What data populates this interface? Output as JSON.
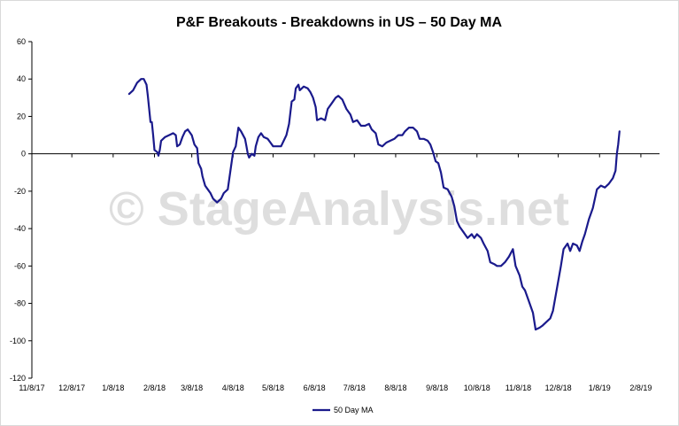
{
  "watermark": "© StageAnalysis.net",
  "chart_data": {
    "type": "line",
    "title": "P&F Breakouts - Breakdowns in US – 50 Day MA",
    "xlabel": "",
    "ylabel": "",
    "ylim": [
      -120,
      60
    ],
    "y_ticks": [
      "60",
      "40",
      "20",
      "0",
      "-20",
      "-40",
      "-60",
      "-80",
      "-100",
      "-120"
    ],
    "x_tick_labels": [
      "11/8/17",
      "12/8/17",
      "1/8/18",
      "2/8/18",
      "3/8/18",
      "4/8/18",
      "5/8/18",
      "6/8/18",
      "7/8/18",
      "8/8/18",
      "9/8/18",
      "10/8/18",
      "11/8/18",
      "12/8/18",
      "1/8/19",
      "2/8/19"
    ],
    "x_ticks": [
      "2017-11-08",
      "2017-12-08",
      "2018-01-08",
      "2018-02-08",
      "2018-03-08",
      "2018-04-08",
      "2018-05-08",
      "2018-06-08",
      "2018-07-08",
      "2018-08-08",
      "2018-09-08",
      "2018-10-08",
      "2018-11-08",
      "2018-12-08",
      "2019-01-08",
      "2019-02-08"
    ],
    "xlim": [
      "2017-11-08",
      "2019-02-22"
    ],
    "grid": false,
    "legend": "bottom",
    "series": [
      {
        "name": "50 Day MA",
        "color": "#1a1a8c",
        "points": [
          [
            "2018-01-20",
            32
          ],
          [
            "2018-01-23",
            34
          ],
          [
            "2018-01-26",
            38
          ],
          [
            "2018-01-29",
            40
          ],
          [
            "2018-01-31",
            40
          ],
          [
            "2018-02-02",
            37
          ],
          [
            "2018-02-03",
            31
          ],
          [
            "2018-02-04",
            24
          ],
          [
            "2018-02-05",
            17
          ],
          [
            "2018-02-06",
            17
          ],
          [
            "2018-02-07",
            10
          ],
          [
            "2018-02-08",
            2
          ],
          [
            "2018-02-10",
            1
          ],
          [
            "2018-02-11",
            -1
          ],
          [
            "2018-02-12",
            2
          ],
          [
            "2018-02-13",
            7
          ],
          [
            "2018-02-16",
            9
          ],
          [
            "2018-02-19",
            10
          ],
          [
            "2018-02-22",
            11
          ],
          [
            "2018-02-24",
            10
          ],
          [
            "2018-02-25",
            4
          ],
          [
            "2018-02-27",
            5
          ],
          [
            "2018-03-01",
            9
          ],
          [
            "2018-03-03",
            12
          ],
          [
            "2018-03-05",
            13
          ],
          [
            "2018-03-08",
            10
          ],
          [
            "2018-03-10",
            5
          ],
          [
            "2018-03-12",
            3
          ],
          [
            "2018-03-13",
            -5
          ],
          [
            "2018-03-15",
            -8
          ],
          [
            "2018-03-16",
            -12
          ],
          [
            "2018-03-18",
            -17
          ],
          [
            "2018-03-20",
            -19
          ],
          [
            "2018-03-22",
            -21
          ],
          [
            "2018-03-24",
            -24
          ],
          [
            "2018-03-27",
            -26
          ],
          [
            "2018-03-30",
            -24
          ],
          [
            "2018-04-01",
            -21
          ],
          [
            "2018-04-04",
            -19
          ],
          [
            "2018-04-06",
            -9
          ],
          [
            "2018-04-08",
            1
          ],
          [
            "2018-04-10",
            4
          ],
          [
            "2018-04-12",
            14
          ],
          [
            "2018-04-14",
            12
          ],
          [
            "2018-04-17",
            8
          ],
          [
            "2018-04-18",
            4
          ],
          [
            "2018-04-19",
            0
          ],
          [
            "2018-04-20",
            -2
          ],
          [
            "2018-04-22",
            0
          ],
          [
            "2018-04-24",
            -1
          ],
          [
            "2018-04-25",
            4
          ],
          [
            "2018-04-27",
            9
          ],
          [
            "2018-04-29",
            11
          ],
          [
            "2018-05-01",
            9
          ],
          [
            "2018-05-04",
            8
          ],
          [
            "2018-05-06",
            6
          ],
          [
            "2018-05-08",
            4
          ],
          [
            "2018-05-11",
            4
          ],
          [
            "2018-05-14",
            4
          ],
          [
            "2018-05-16",
            7
          ],
          [
            "2018-05-18",
            10
          ],
          [
            "2018-05-20",
            16
          ],
          [
            "2018-05-22",
            28
          ],
          [
            "2018-05-24",
            29
          ],
          [
            "2018-05-25",
            35
          ],
          [
            "2018-05-27",
            37
          ],
          [
            "2018-05-28",
            34
          ],
          [
            "2018-05-31",
            36
          ],
          [
            "2018-06-03",
            35
          ],
          [
            "2018-06-05",
            33
          ],
          [
            "2018-06-07",
            30
          ],
          [
            "2018-06-09",
            25
          ],
          [
            "2018-06-10",
            18
          ],
          [
            "2018-06-13",
            19
          ],
          [
            "2018-06-16",
            18
          ],
          [
            "2018-06-18",
            24
          ],
          [
            "2018-06-21",
            27
          ],
          [
            "2018-06-24",
            30
          ],
          [
            "2018-06-26",
            31
          ],
          [
            "2018-06-29",
            29
          ],
          [
            "2018-07-02",
            24
          ],
          [
            "2018-07-05",
            21
          ],
          [
            "2018-07-07",
            17
          ],
          [
            "2018-07-10",
            18
          ],
          [
            "2018-07-13",
            15
          ],
          [
            "2018-07-16",
            15
          ],
          [
            "2018-07-19",
            16
          ],
          [
            "2018-07-21",
            13
          ],
          [
            "2018-07-24",
            11
          ],
          [
            "2018-07-26",
            5
          ],
          [
            "2018-07-29",
            4
          ],
          [
            "2018-08-01",
            6
          ],
          [
            "2018-08-04",
            7
          ],
          [
            "2018-08-07",
            8
          ],
          [
            "2018-08-10",
            10
          ],
          [
            "2018-08-13",
            10
          ],
          [
            "2018-08-15",
            12
          ],
          [
            "2018-08-18",
            14
          ],
          [
            "2018-08-21",
            14
          ],
          [
            "2018-08-24",
            12
          ],
          [
            "2018-08-26",
            8
          ],
          [
            "2018-08-29",
            8
          ],
          [
            "2018-09-01",
            7
          ],
          [
            "2018-09-03",
            5
          ],
          [
            "2018-09-05",
            1
          ],
          [
            "2018-09-07",
            -4
          ],
          [
            "2018-09-09",
            -5
          ],
          [
            "2018-09-11",
            -10
          ],
          [
            "2018-09-13",
            -18
          ],
          [
            "2018-09-16",
            -19
          ],
          [
            "2018-09-19",
            -23
          ],
          [
            "2018-09-21",
            -28
          ],
          [
            "2018-09-23",
            -36
          ],
          [
            "2018-09-25",
            -39
          ],
          [
            "2018-09-28",
            -42
          ],
          [
            "2018-10-01",
            -45
          ],
          [
            "2018-10-04",
            -43
          ],
          [
            "2018-10-06",
            -45
          ],
          [
            "2018-10-08",
            -43
          ],
          [
            "2018-10-11",
            -45
          ],
          [
            "2018-10-13",
            -48
          ],
          [
            "2018-10-16",
            -52
          ],
          [
            "2018-10-18",
            -58
          ],
          [
            "2018-10-21",
            -59
          ],
          [
            "2018-10-23",
            -60
          ],
          [
            "2018-10-26",
            -60
          ],
          [
            "2018-10-29",
            -58
          ],
          [
            "2018-11-01",
            -55
          ],
          [
            "2018-11-04",
            -51
          ],
          [
            "2018-11-06",
            -60
          ],
          [
            "2018-11-09",
            -65
          ],
          [
            "2018-11-11",
            -71
          ],
          [
            "2018-11-13",
            -73
          ],
          [
            "2018-11-16",
            -79
          ],
          [
            "2018-11-19",
            -85
          ],
          [
            "2018-11-21",
            -94
          ],
          [
            "2018-11-24",
            -93
          ],
          [
            "2018-11-26",
            -92
          ],
          [
            "2018-11-29",
            -90
          ],
          [
            "2018-12-02",
            -88
          ],
          [
            "2018-12-04",
            -84
          ],
          [
            "2018-12-07",
            -72
          ],
          [
            "2018-12-10",
            -60
          ],
          [
            "2018-12-12",
            -51
          ],
          [
            "2018-12-15",
            -48
          ],
          [
            "2018-12-17",
            -52
          ],
          [
            "2018-12-19",
            -48
          ],
          [
            "2018-12-22",
            -49
          ],
          [
            "2018-12-24",
            -52
          ],
          [
            "2018-12-26",
            -47
          ],
          [
            "2018-12-28",
            -43
          ],
          [
            "2018-12-31",
            -35
          ],
          [
            "2019-01-03",
            -29
          ],
          [
            "2019-01-06",
            -19
          ],
          [
            "2019-01-09",
            -17
          ],
          [
            "2019-01-12",
            -18
          ],
          [
            "2019-01-15",
            -16
          ],
          [
            "2019-01-18",
            -13
          ],
          [
            "2019-01-20",
            -9
          ],
          [
            "2019-01-21",
            0
          ],
          [
            "2019-01-22",
            5
          ],
          [
            "2019-01-23",
            12
          ]
        ]
      }
    ]
  }
}
